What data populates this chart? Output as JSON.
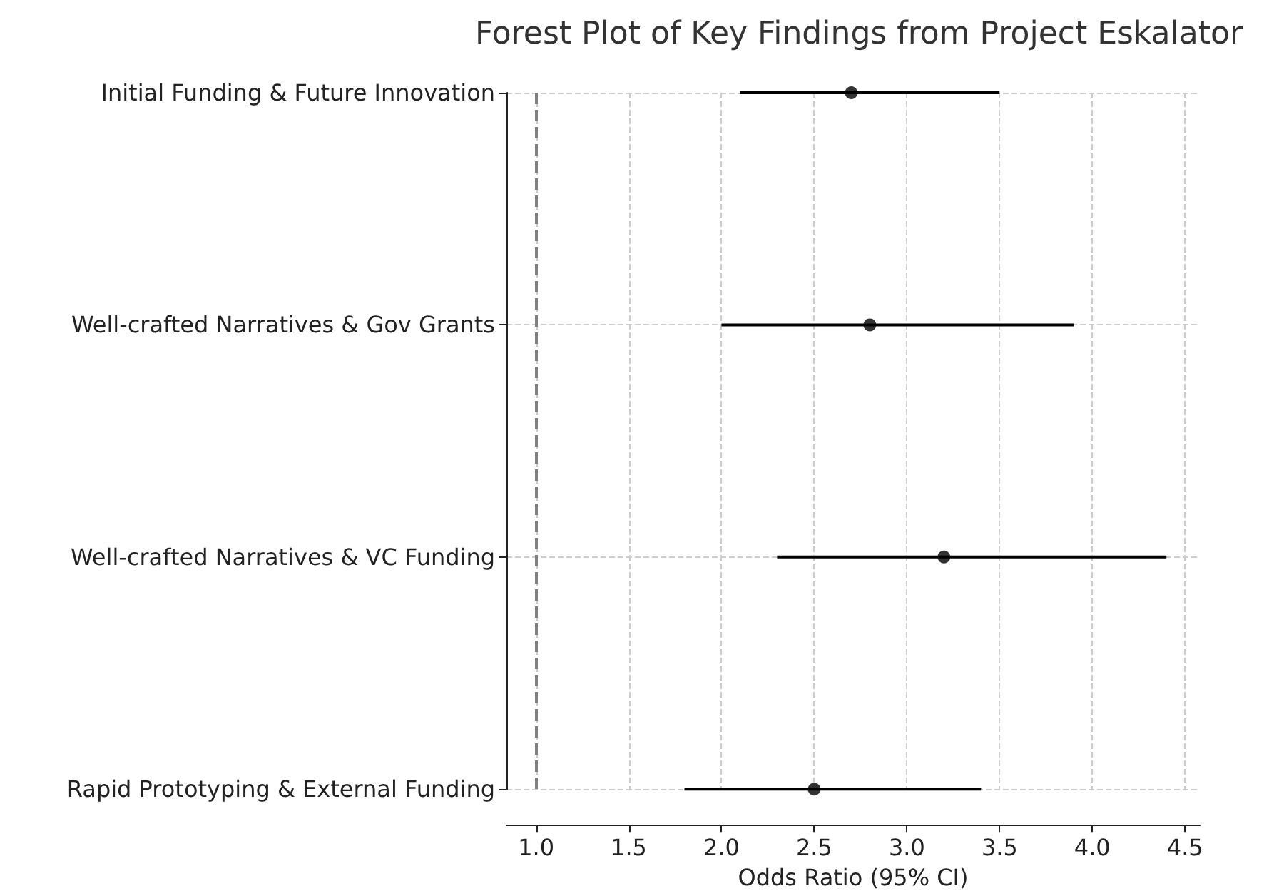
{
  "chart_data": {
    "type": "scatter",
    "title": "Forest Plot of Key Findings from Project Eskalator",
    "xlabel": "Odds Ratio (95% CI)",
    "orientation": "horizontal",
    "categories": [
      "Initial Funding & Future Innovation",
      "Well-crafted Narratives & Gov Grants",
      "Well-crafted Narratives & VC Funding",
      "Rapid Prototyping & External Funding"
    ],
    "series": [
      {
        "color": "#000000",
        "values": [
          2.7,
          2.8,
          3.2,
          2.5
        ],
        "errors": [
          [
            2.1,
            3.5
          ],
          [
            2.0,
            3.9
          ],
          [
            2.3,
            4.4
          ],
          [
            1.8,
            3.4
          ]
        ]
      }
    ],
    "xlim": [
      0.84,
      4.58
    ],
    "xticks": [
      {
        "value": 1,
        "label": "1.0"
      },
      1.5,
      {
        "value": 2,
        "label": "2.0"
      },
      2.5,
      {
        "value": 3,
        "label": "3.0"
      },
      3.5,
      {
        "value": 4,
        "label": "4.0"
      },
      4.5
    ],
    "grid": true,
    "marker": "circle",
    "ref_lines": [
      {
        "axis": "x",
        "value": 1.0,
        "color": "#808080",
        "line_style": "dashed"
      }
    ]
  }
}
